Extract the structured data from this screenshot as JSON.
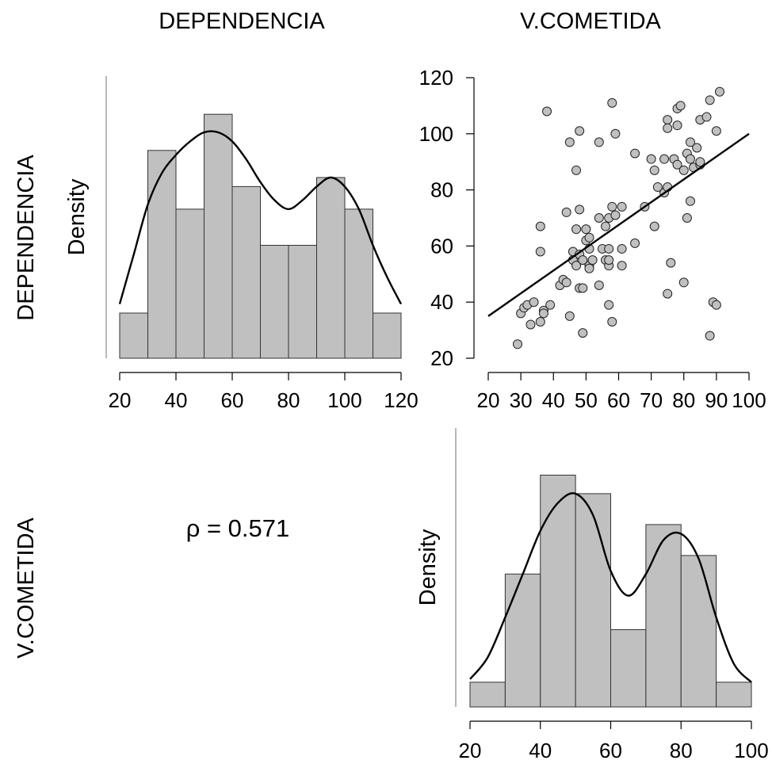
{
  "column_headers": [
    "DEPENDENCIA",
    "V.COMETIDA"
  ],
  "row_headers": [
    "DEPENDENCIA",
    "V.COMETIDA"
  ],
  "correlation_text": "ρ = 0.571",
  "colors": {
    "bar_fill": "#c0c0c0",
    "point_fill": "#c0c0c0",
    "line": "#000000"
  },
  "chart_data": [
    {
      "type": "bar",
      "panel": "DEPENDENCIA histogram",
      "ylabel": "Density",
      "bin_edges": [
        20,
        30,
        40,
        50,
        60,
        70,
        80,
        90,
        100,
        110,
        120
      ],
      "values": [
        1,
        4.6,
        3.3,
        5.4,
        3.8,
        2.5,
        2.5,
        4.0,
        3.3,
        1
      ],
      "density_curve": {
        "x": [
          20,
          25,
          30,
          35,
          40,
          45,
          50,
          55,
          60,
          65,
          70,
          75,
          80,
          85,
          90,
          95,
          100,
          105,
          110,
          115,
          120
        ],
        "y": [
          1.2,
          2.3,
          3.4,
          4.1,
          4.5,
          4.8,
          5.0,
          5.0,
          4.8,
          4.4,
          3.9,
          3.5,
          3.3,
          3.5,
          3.8,
          4.0,
          3.8,
          3.3,
          2.5,
          1.8,
          1.2
        ]
      },
      "xticks": [
        "20",
        "40",
        "60",
        "80",
        "100",
        "120"
      ],
      "xlim": [
        20,
        120
      ]
    },
    {
      "type": "scatter",
      "panel": "V.COMETIDA vs DEPENDENCIA",
      "xticks": [
        "20",
        "30",
        "40",
        "50",
        "60",
        "70",
        "80",
        "90",
        "100"
      ],
      "yticks": [
        "20",
        "40",
        "60",
        "80",
        "100",
        "120"
      ],
      "xlim": [
        20,
        100
      ],
      "ylim": [
        20,
        120
      ],
      "regression": {
        "x": [
          20,
          100
        ],
        "y": [
          35,
          100
        ]
      },
      "points": [
        [
          29,
          25
        ],
        [
          30,
          36
        ],
        [
          31,
          38
        ],
        [
          32,
          39
        ],
        [
          33,
          32
        ],
        [
          34,
          40
        ],
        [
          36,
          33
        ],
        [
          36,
          67
        ],
        [
          36,
          58
        ],
        [
          37,
          37
        ],
        [
          37,
          36
        ],
        [
          38,
          108
        ],
        [
          39,
          39
        ],
        [
          42,
          46
        ],
        [
          43,
          48
        ],
        [
          44,
          47
        ],
        [
          44,
          72
        ],
        [
          45,
          35
        ],
        [
          45,
          97
        ],
        [
          46,
          58
        ],
        [
          46,
          55
        ],
        [
          47,
          87
        ],
        [
          47,
          66
        ],
        [
          47,
          53
        ],
        [
          48,
          101
        ],
        [
          48,
          73
        ],
        [
          48,
          57
        ],
        [
          48,
          45
        ],
        [
          49,
          45
        ],
        [
          49,
          29
        ],
        [
          49,
          55
        ],
        [
          50,
          66
        ],
        [
          50,
          62
        ],
        [
          51,
          63
        ],
        [
          51,
          59
        ],
        [
          51,
          53
        ],
        [
          51,
          52
        ],
        [
          52,
          55
        ],
        [
          54,
          70
        ],
        [
          54,
          97
        ],
        [
          54,
          46
        ],
        [
          55,
          59
        ],
        [
          56,
          55
        ],
        [
          56,
          67
        ],
        [
          57,
          53
        ],
        [
          57,
          70
        ],
        [
          57,
          39
        ],
        [
          57,
          55
        ],
        [
          57,
          59
        ],
        [
          58,
          111
        ],
        [
          58,
          74
        ],
        [
          58,
          33
        ],
        [
          59,
          100
        ],
        [
          59,
          71
        ],
        [
          61,
          74
        ],
        [
          61,
          59
        ],
        [
          61,
          53
        ],
        [
          65,
          93
        ],
        [
          65,
          61
        ],
        [
          68,
          74
        ],
        [
          70,
          91
        ],
        [
          71,
          87
        ],
        [
          71,
          67
        ],
        [
          72,
          81
        ],
        [
          74,
          91
        ],
        [
          74,
          79
        ],
        [
          75,
          105
        ],
        [
          75,
          102
        ],
        [
          75,
          43
        ],
        [
          75,
          81
        ],
        [
          76,
          54
        ],
        [
          77,
          91
        ],
        [
          78,
          103
        ],
        [
          78,
          89
        ],
        [
          78,
          109
        ],
        [
          79,
          110
        ],
        [
          80,
          87
        ],
        [
          80,
          47
        ],
        [
          81,
          70
        ],
        [
          81,
          93
        ],
        [
          82,
          76
        ],
        [
          82,
          91
        ],
        [
          82,
          97
        ],
        [
          83,
          88
        ],
        [
          84,
          95
        ],
        [
          85,
          105
        ],
        [
          85,
          89
        ],
        [
          85,
          90
        ],
        [
          87,
          106
        ],
        [
          88,
          28
        ],
        [
          88,
          112
        ],
        [
          89,
          40
        ],
        [
          90,
          39
        ],
        [
          90,
          101
        ],
        [
          91,
          115
        ]
      ]
    },
    {
      "type": "bar",
      "panel": "V.COMETIDA histogram",
      "ylabel": "Density",
      "bin_edges": [
        20,
        30,
        40,
        50,
        60,
        70,
        80,
        90,
        100
      ],
      "values": [
        0.8,
        4.3,
        7.5,
        6.9,
        2.5,
        5.9,
        4.9,
        0.8
      ],
      "density_curve": {
        "x": [
          20,
          25,
          30,
          35,
          40,
          45,
          50,
          55,
          60,
          65,
          70,
          75,
          80,
          85,
          90,
          95,
          100
        ],
        "y": [
          0.9,
          1.6,
          2.9,
          4.3,
          5.7,
          6.6,
          6.9,
          6.2,
          4.4,
          3.6,
          4.3,
          5.4,
          5.6,
          4.8,
          2.9,
          1.4,
          0.8
        ]
      },
      "xticks": [
        "20",
        "40",
        "60",
        "80",
        "100"
      ],
      "xlim": [
        20,
        100
      ]
    }
  ]
}
